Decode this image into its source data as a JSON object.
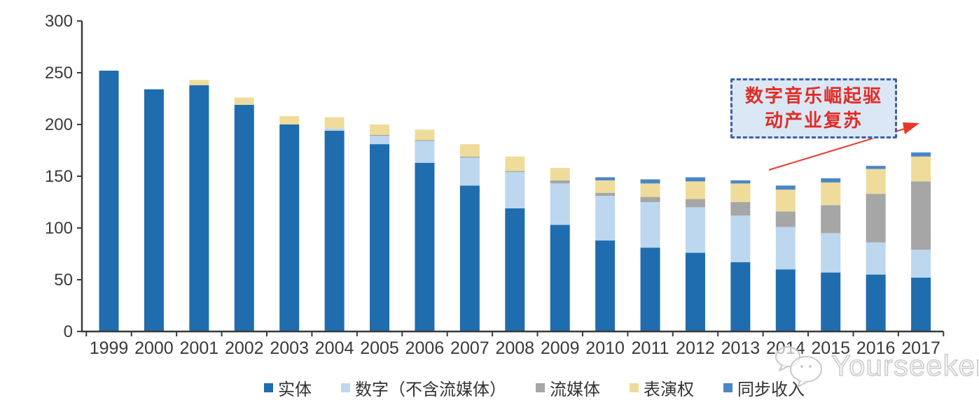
{
  "chart_data": {
    "type": "bar",
    "stacked": true,
    "title": "",
    "xlabel": "",
    "ylabel": "",
    "categories": [
      "1999",
      "2000",
      "2001",
      "2002",
      "2003",
      "2004",
      "2005",
      "2006",
      "2007",
      "2008",
      "2009",
      "2010",
      "2011",
      "2012",
      "2013",
      "2014",
      "2015",
      "2016",
      "2017"
    ],
    "series": [
      {
        "name": "实体",
        "color": "#1F6DAE",
        "values": [
          252,
          234,
          238,
          219,
          200,
          194,
          181,
          163,
          141,
          119,
          103,
          88,
          81,
          76,
          67,
          60,
          57,
          55,
          52
        ]
      },
      {
        "name": "数字（不含流媒体）",
        "color": "#BDD7EE",
        "values": [
          0,
          0,
          0,
          0,
          0,
          2,
          8,
          21,
          27,
          35,
          40,
          43,
          44,
          44,
          45,
          41,
          38,
          31,
          27
        ]
      },
      {
        "name": "流媒体",
        "color": "#A6A6A6",
        "values": [
          0,
          0,
          0,
          0,
          0,
          0,
          1,
          1,
          1,
          1,
          3,
          3,
          5,
          8,
          13,
          15,
          27,
          47,
          66
        ]
      },
      {
        "name": "表演权",
        "color": "#EFDC9B",
        "values": [
          0,
          0,
          5,
          7,
          8,
          11,
          10,
          10,
          12,
          14,
          12,
          12,
          13,
          17,
          18,
          21,
          22,
          24,
          24
        ]
      },
      {
        "name": "同步收入",
        "color": "#4A86C6",
        "values": [
          0,
          0,
          0,
          0,
          0,
          0,
          0,
          0,
          0,
          0,
          0,
          3,
          4,
          4,
          3,
          4,
          4,
          3,
          4
        ]
      }
    ],
    "ylim": [
      0,
      300
    ],
    "yticks": [
      0,
      50,
      100,
      150,
      200,
      250,
      300
    ],
    "grid": false,
    "legend_position": "bottom",
    "axis_color": "#3A3A3A"
  },
  "annotation": {
    "line1": "数字音乐崛起驱",
    "line2": "动产业复苏",
    "text_color": "#E32C24",
    "box_fill": "#DAE8F6",
    "box_border": "#3D5FA9",
    "arrow_color": "#E8382C"
  },
  "watermark": {
    "text": "Yourseeker",
    "color": "#C6C6C6"
  }
}
